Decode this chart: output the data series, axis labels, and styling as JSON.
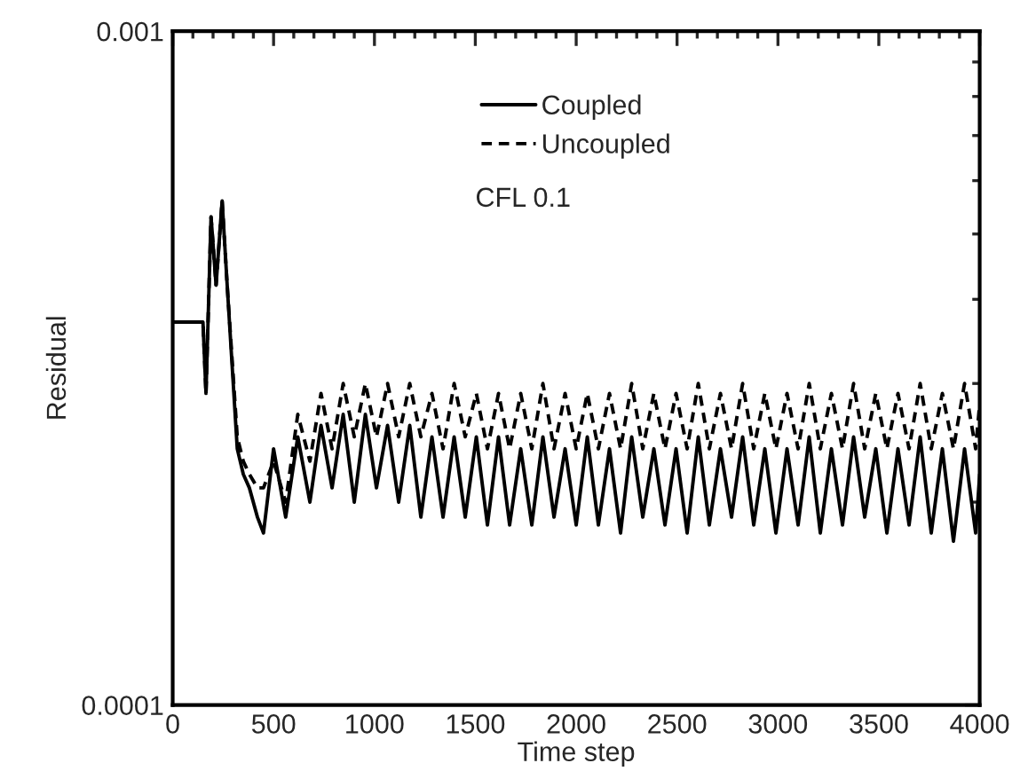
{
  "chart_data": {
    "type": "line",
    "xlabel": "Time step",
    "ylabel": "Residual",
    "annotations": [
      "CFL 0.1"
    ],
    "log": "y",
    "xlim": [
      0,
      4000
    ],
    "xticks": [
      0,
      500,
      1000,
      1500,
      2000,
      2500,
      3000,
      3500,
      4000
    ],
    "ylim": [
      0.0001,
      0.001
    ],
    "yticks": [
      0.0001,
      0.001
    ],
    "grid": false,
    "legend": "top",
    "marker": "none",
    "x": [
      0,
      150,
      165,
      190,
      215,
      245,
      270,
      320,
      350,
      380,
      420,
      450,
      500,
      560,
      620,
      680,
      735,
      790,
      845,
      900,
      955,
      1010,
      1065,
      1120,
      1175,
      1230,
      1285,
      1340,
      1395,
      1450,
      1505,
      1560,
      1615,
      1670,
      1725,
      1780,
      1835,
      1890,
      1945,
      2000,
      2055,
      2110,
      2165,
      2220,
      2275,
      2330,
      2385,
      2440,
      2495,
      2550,
      2605,
      2660,
      2715,
      2770,
      2825,
      2880,
      2935,
      2990,
      3045,
      3100,
      3155,
      3210,
      3265,
      3320,
      3375,
      3430,
      3485,
      3540,
      3595,
      3650,
      3705,
      3760,
      3815,
      3870,
      3925,
      3980,
      4000
    ],
    "series": [
      {
        "name": "Coupled",
        "color": "#000000",
        "line_style": "solid",
        "values": [
          0.00037,
          0.00037,
          0.00029,
          0.00053,
          0.00042,
          0.00056,
          0.00042,
          0.00024,
          0.00022,
          0.00021,
          0.00019,
          0.00018,
          0.00024,
          0.00019,
          0.00025,
          0.0002,
          0.00026,
          0.00021,
          0.00027,
          0.0002,
          0.00027,
          0.00021,
          0.00026,
          0.0002,
          0.00026,
          0.00019,
          0.00025,
          0.00019,
          0.00025,
          0.00019,
          0.00025,
          0.000185,
          0.00025,
          0.000185,
          0.00024,
          0.000185,
          0.00025,
          0.00019,
          0.00024,
          0.000185,
          0.00025,
          0.000185,
          0.00024,
          0.00018,
          0.00025,
          0.00019,
          0.00024,
          0.000185,
          0.00024,
          0.00018,
          0.00025,
          0.000185,
          0.00024,
          0.00019,
          0.00025,
          0.000185,
          0.00024,
          0.00018,
          0.00024,
          0.000185,
          0.00025,
          0.00018,
          0.00024,
          0.000185,
          0.00025,
          0.00019,
          0.00024,
          0.00018,
          0.00024,
          0.000185,
          0.00025,
          0.00018,
          0.00024,
          0.000175,
          0.00024,
          0.00018,
          0.00022
        ]
      },
      {
        "name": "Uncoupled",
        "color": "#000000",
        "line_style": "dashed",
        "values": [
          0.00037,
          0.00037,
          0.00029,
          0.00053,
          0.00042,
          0.00056,
          0.00042,
          0.00025,
          0.00023,
          0.00022,
          0.00021,
          0.00021,
          0.00023,
          0.0002,
          0.00027,
          0.00023,
          0.00029,
          0.00024,
          0.0003,
          0.00025,
          0.0003,
          0.00025,
          0.0003,
          0.00025,
          0.0003,
          0.00025,
          0.00029,
          0.00024,
          0.0003,
          0.00025,
          0.00029,
          0.00024,
          0.00029,
          0.00024,
          0.00029,
          0.00024,
          0.0003,
          0.00024,
          0.00029,
          0.00024,
          0.00029,
          0.00024,
          0.00029,
          0.00024,
          0.0003,
          0.00024,
          0.00029,
          0.00024,
          0.00029,
          0.00024,
          0.0003,
          0.00024,
          0.00029,
          0.00024,
          0.0003,
          0.00024,
          0.00029,
          0.00024,
          0.00029,
          0.00024,
          0.0003,
          0.00024,
          0.00029,
          0.00024,
          0.0003,
          0.00024,
          0.00029,
          0.00024,
          0.00029,
          0.00024,
          0.0003,
          0.00024,
          0.00029,
          0.00024,
          0.0003,
          0.00024,
          0.00028
        ]
      }
    ]
  }
}
